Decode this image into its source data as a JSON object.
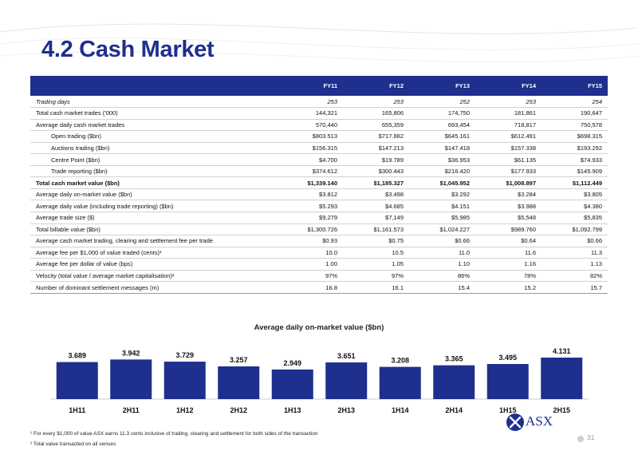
{
  "page": {
    "title": "4.2 Cash Market",
    "page_number": "31"
  },
  "table": {
    "headers": [
      "",
      "FY11",
      "FY12",
      "FY13",
      "FY14",
      "FY15"
    ],
    "rows": [
      {
        "label": "Trading days",
        "values": [
          "253",
          "253",
          "252",
          "253",
          "254"
        ],
        "style": "italic"
      },
      {
        "label": "Total cash market trades ('000)",
        "values": [
          "144,321",
          "165,806",
          "174,750",
          "181,861",
          "190,647"
        ],
        "style": ""
      },
      {
        "label": "Average daily cash market trades",
        "values": [
          "570,440",
          "655,359",
          "693,454",
          "718,817",
          "750,578"
        ],
        "style": ""
      },
      {
        "label": "Open trading ($bn)",
        "values": [
          "$803.513",
          "$717.882",
          "$645.161",
          "$612.491",
          "$698.315"
        ],
        "style": "sub"
      },
      {
        "label": "Auctions trading ($bn)",
        "values": [
          "$156.315",
          "$147.213",
          "$147.418",
          "$157.338",
          "$193.292"
        ],
        "style": "sub"
      },
      {
        "label": "Centre Point ($bn)",
        "values": [
          "$4.700",
          "$19.789",
          "$36.953",
          "$61.135",
          "$74.933"
        ],
        "style": "sub"
      },
      {
        "label": "Trade reporting ($bn)",
        "values": [
          "$374.612",
          "$300.443",
          "$216.420",
          "$177.933",
          "$145.909"
        ],
        "style": "sub"
      },
      {
        "label": "Total cash market value ($bn)",
        "values": [
          "$1,339.140",
          "$1,185.327",
          "$1,045.952",
          "$1,008.897",
          "$1,112.449"
        ],
        "style": "total"
      },
      {
        "label": "Average daily on-market value ($bn)",
        "values": [
          "$3.812",
          "$3.498",
          "$3.292",
          "$3.284",
          "$3.805"
        ],
        "style": ""
      },
      {
        "label": "Average daily value (including trade reporting) ($bn)",
        "values": [
          "$5.293",
          "$4.685",
          "$4.151",
          "$3.988",
          "$4.380"
        ],
        "style": ""
      },
      {
        "label": "Average trade size ($)",
        "values": [
          "$9,279",
          "$7,149",
          "$5,985",
          "$5,548",
          "$5,835"
        ],
        "style": ""
      },
      {
        "label": "Total billable value ($bn)",
        "values": [
          "$1,300.726",
          "$1,161.573",
          "$1,024.227",
          "$989.760",
          "$1,092.799"
        ],
        "style": ""
      },
      {
        "label": "Average cash market trading, clearing and settlement fee per trade",
        "values": [
          "$0.93",
          "$0.75",
          "$0.66",
          "$0.64",
          "$0.66"
        ],
        "style": ""
      },
      {
        "label": "Average fee per $1,000 of value traded (cents)¹",
        "values": [
          "10.0",
          "10.5",
          "11.0",
          "11.6",
          "11.3"
        ],
        "style": ""
      },
      {
        "label": "Average fee per dollar of value (bps)",
        "values": [
          "1.00",
          "1.05",
          "1.10",
          "1.16",
          "1.13"
        ],
        "style": ""
      },
      {
        "label": "Velocity (total value / average market capitalisation)²",
        "values": [
          "97%",
          "97%",
          "86%",
          "78%",
          "82%"
        ],
        "style": ""
      },
      {
        "label": "Number of dominant settlement messages (m)",
        "values": [
          "16.8",
          "16.1",
          "15.4",
          "15.2",
          "15.7"
        ],
        "style": ""
      }
    ]
  },
  "chart_data": {
    "type": "bar",
    "title": "Average daily on-market value ($bn)",
    "categories": [
      "1H11",
      "2H11",
      "1H12",
      "2H12",
      "1H13",
      "2H13",
      "1H14",
      "2H14",
      "1H15",
      "2H15"
    ],
    "values": [
      3.689,
      3.942,
      3.729,
      3.257,
      2.949,
      3.651,
      3.208,
      3.365,
      3.495,
      4.131
    ],
    "value_labels": [
      "3.689",
      "3.942",
      "3.729",
      "3.257",
      "2.949",
      "3.651",
      "3.208",
      "3.365",
      "3.495",
      "4.131"
    ],
    "ylim": [
      0,
      4.5
    ],
    "bar_color": "#1f2f8e",
    "grid": false,
    "legend": "none"
  },
  "footnotes": {
    "fn1": "¹ For every $1,000 of value ASX earns 11.3 cents inclusive of trading, clearing and settlement for both sides of the transaction",
    "fn2": "² Total value transacted on all venues"
  },
  "logo": {
    "text": "ASX",
    "icon": "asx-logo-icon",
    "color": "#1f2f8e"
  }
}
